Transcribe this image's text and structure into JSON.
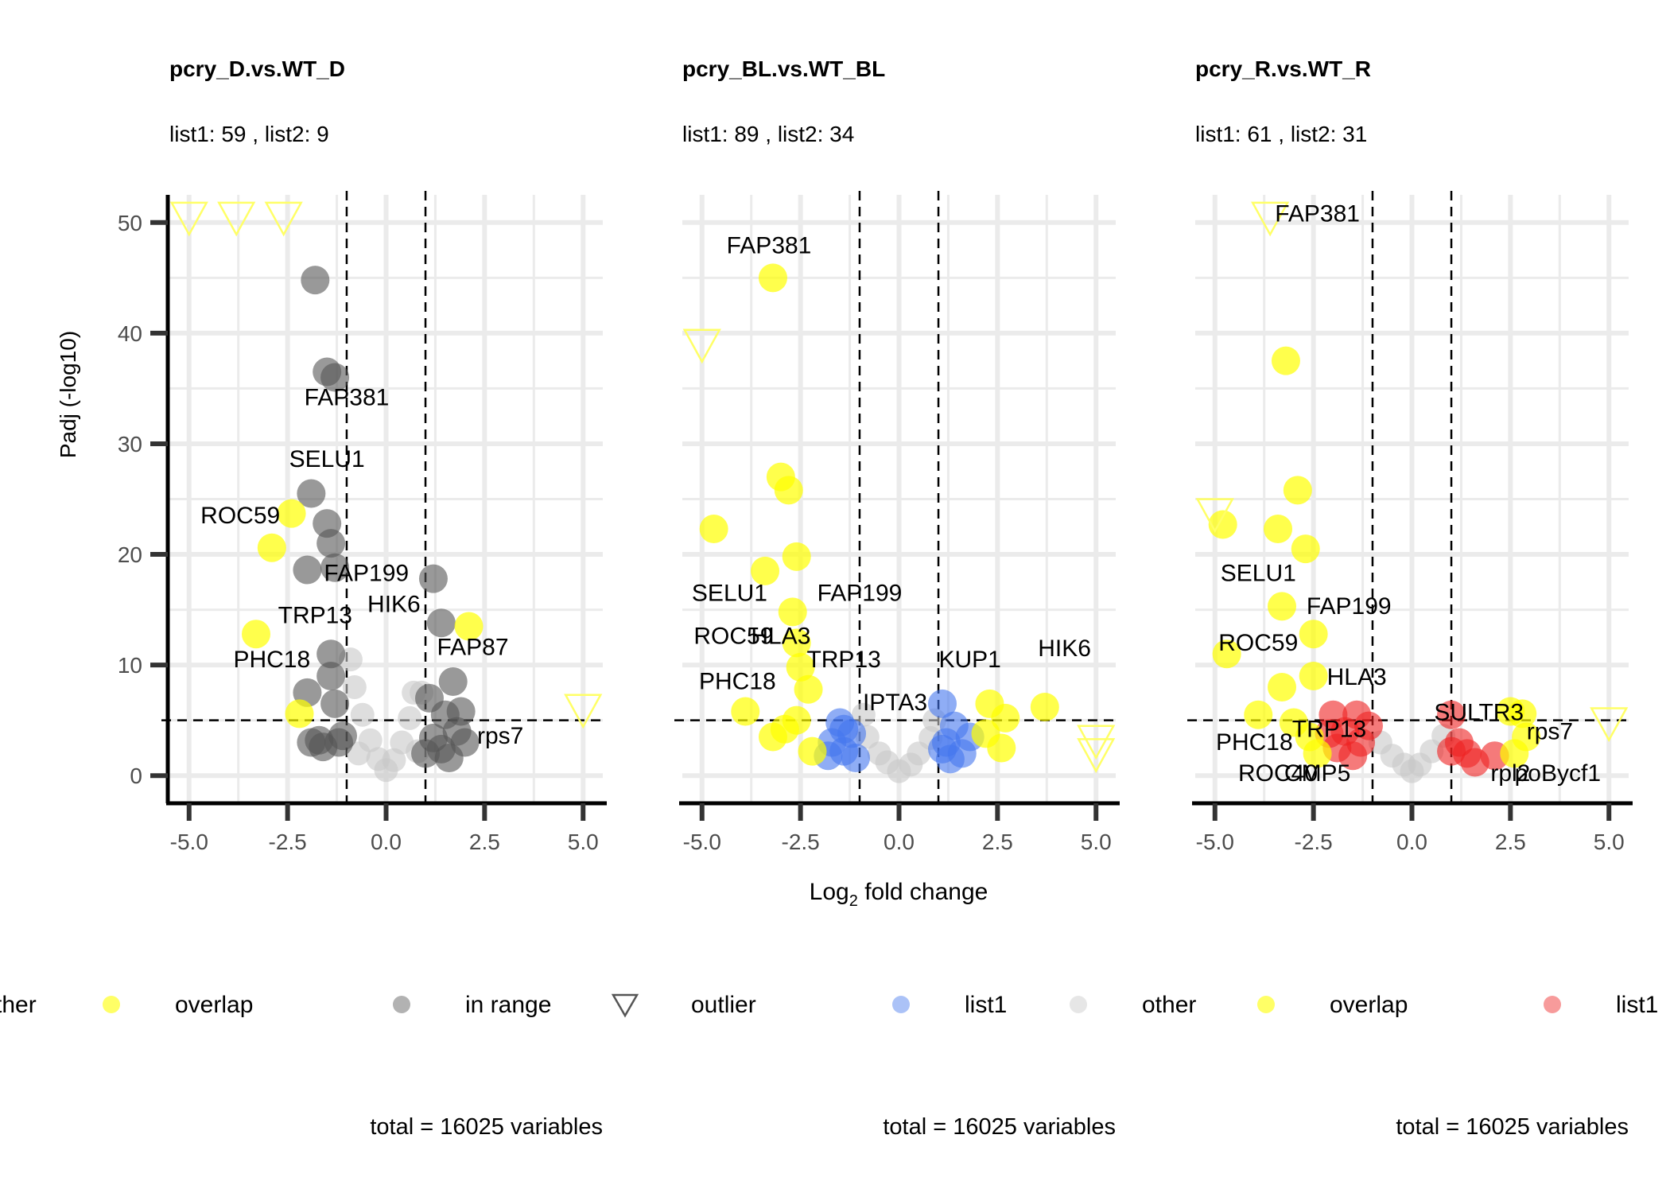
{
  "figure": {
    "xlabel_main": "Log",
    "xlabel_sub": "2",
    "xlabel_rest": " fold change",
    "ylabel": "Padj (-log10)"
  },
  "colors": {
    "overlap": "#ffff00",
    "in_range": "#555555",
    "outlier_stroke": "#ffff66",
    "list1_blue": "#4477ee",
    "other": "#c8c8c8",
    "list1_red": "#ee2222",
    "grid": "#ebebeb",
    "text": "#000000",
    "tick_text": "#4d4d4d"
  },
  "legend": [
    {
      "key": "other",
      "label": "ther",
      "shape": "none"
    },
    {
      "key": "overlap",
      "label": "overlap",
      "shape": "circle"
    },
    {
      "key": "in_range",
      "label": "in range",
      "shape": "circle"
    },
    {
      "key": "outlier",
      "label": "outlier",
      "shape": "triangle"
    },
    {
      "key": "list1_blue",
      "label": "list1",
      "shape": "circle"
    },
    {
      "key": "other",
      "label": "other",
      "shape": "circle"
    },
    {
      "key": "overlap",
      "label": "overlap",
      "shape": "circle"
    },
    {
      "key": "list1_red",
      "label": "list1",
      "shape": "circle"
    }
  ],
  "chart_data": [
    {
      "type": "scatter",
      "title": "pcry_D.vs.WT_D",
      "subtitle": "list1: 59 , list2:  9",
      "caption": "total = 16025 variables",
      "xlim": [
        -5.5,
        5.5
      ],
      "ylim": [
        -2.5,
        52.5
      ],
      "xticks": [
        "-5.0",
        "-2.5",
        "0.0",
        "2.5",
        "5.0"
      ],
      "xtick_values": [
        -5,
        -2.5,
        0,
        2.5,
        5
      ],
      "yticks": [
        "0",
        "10",
        "20",
        "30",
        "40",
        "50"
      ],
      "ytick_values": [
        0,
        10,
        20,
        30,
        40,
        50
      ],
      "show_yaxis": true,
      "vlines": [
        -1,
        1
      ],
      "hline": 5,
      "grid": true,
      "points": [
        {
          "x": -1.8,
          "y": 44.8,
          "c": "in_range"
        },
        {
          "x": -1.5,
          "y": 36.5,
          "c": "in_range"
        },
        {
          "x": -1.3,
          "y": 36.0,
          "c": "in_range"
        },
        {
          "x": -1.9,
          "y": 25.5,
          "c": "in_range"
        },
        {
          "x": -1.5,
          "y": 22.8,
          "c": "in_range"
        },
        {
          "x": -1.4,
          "y": 21.0,
          "c": "in_range"
        },
        {
          "x": -1.3,
          "y": 18.8,
          "c": "in_range"
        },
        {
          "x": -2.0,
          "y": 18.6,
          "c": "in_range"
        },
        {
          "x": -1.4,
          "y": 11.0,
          "c": "in_range"
        },
        {
          "x": -1.4,
          "y": 9.0,
          "c": "in_range"
        },
        {
          "x": -2.0,
          "y": 7.5,
          "c": "in_range"
        },
        {
          "x": -1.3,
          "y": 6.5,
          "c": "in_range"
        },
        {
          "x": -1.7,
          "y": 3.2,
          "c": "in_range"
        },
        {
          "x": -1.2,
          "y": 3.0,
          "c": "in_range"
        },
        {
          "x": -1.6,
          "y": 2.6,
          "c": "in_range"
        },
        {
          "x": -1.1,
          "y": 3.6,
          "c": "in_range"
        },
        {
          "x": -1.9,
          "y": 3.0,
          "c": "in_range"
        },
        {
          "x": 1.2,
          "y": 17.8,
          "c": "in_range"
        },
        {
          "x": 1.4,
          "y": 13.8,
          "c": "in_range"
        },
        {
          "x": 1.7,
          "y": 8.5,
          "c": "in_range"
        },
        {
          "x": 1.1,
          "y": 7.0,
          "c": "in_range"
        },
        {
          "x": 1.5,
          "y": 5.5,
          "c": "in_range"
        },
        {
          "x": 1.9,
          "y": 5.8,
          "c": "in_range"
        },
        {
          "x": 1.8,
          "y": 4.0,
          "c": "in_range"
        },
        {
          "x": 2.0,
          "y": 3.0,
          "c": "in_range"
        },
        {
          "x": 1.2,
          "y": 3.4,
          "c": "in_range"
        },
        {
          "x": 1.4,
          "y": 2.4,
          "c": "in_range"
        },
        {
          "x": 1.0,
          "y": 2.0,
          "c": "in_range"
        },
        {
          "x": 1.6,
          "y": 1.6,
          "c": "in_range"
        },
        {
          "x": -0.9,
          "y": 10.5,
          "c": "other"
        },
        {
          "x": -0.8,
          "y": 8.0,
          "c": "other"
        },
        {
          "x": -0.6,
          "y": 5.5,
          "c": "other"
        },
        {
          "x": -0.4,
          "y": 3.2,
          "c": "other"
        },
        {
          "x": -0.2,
          "y": 1.5,
          "c": "other"
        },
        {
          "x": 0.0,
          "y": 0.5,
          "c": "other"
        },
        {
          "x": 0.2,
          "y": 1.4,
          "c": "other"
        },
        {
          "x": 0.4,
          "y": 3.0,
          "c": "other"
        },
        {
          "x": 0.6,
          "y": 5.2,
          "c": "other"
        },
        {
          "x": 0.7,
          "y": 7.5,
          "c": "other"
        },
        {
          "x": 0.9,
          "y": 7.5,
          "c": "other"
        },
        {
          "x": -0.7,
          "y": 2.0,
          "c": "other"
        },
        {
          "x": 0.8,
          "y": 2.2,
          "c": "other"
        },
        {
          "x": -2.4,
          "y": 23.7,
          "c": "overlap"
        },
        {
          "x": -2.9,
          "y": 20.6,
          "c": "overlap"
        },
        {
          "x": -3.3,
          "y": 12.8,
          "c": "overlap"
        },
        {
          "x": -2.2,
          "y": 5.6,
          "c": "overlap"
        },
        {
          "x": 2.1,
          "y": 13.5,
          "c": "overlap"
        }
      ],
      "outliers": [
        {
          "x": -5.0,
          "y": 50.5
        },
        {
          "x": -3.8,
          "y": 50.5
        },
        {
          "x": -2.6,
          "y": 50.5
        },
        {
          "x": 5.0,
          "y": 6.0
        }
      ],
      "labels": [
        {
          "text": "FAP381",
          "x": -1.0,
          "y": 33.5
        },
        {
          "text": "SELU1",
          "x": -1.5,
          "y": 27.9
        },
        {
          "text": "ROC59",
          "x": -3.7,
          "y": 22.8
        },
        {
          "text": "FAP199",
          "x": -0.5,
          "y": 17.6
        },
        {
          "text": "HIK6",
          "x": 0.2,
          "y": 14.8
        },
        {
          "text": "TRP13",
          "x": -1.8,
          "y": 13.8
        },
        {
          "text": "PHC18",
          "x": -2.9,
          "y": 9.8
        },
        {
          "text": "FAP87",
          "x": 2.2,
          "y": 10.9
        },
        {
          "text": "rps7",
          "x": 2.9,
          "y": 2.9
        }
      ]
    },
    {
      "type": "scatter",
      "title": "pcry_BL.vs.WT_BL",
      "subtitle": "list1: 89 , list2:  34",
      "caption": "total = 16025 variables",
      "xlim": [
        -5.5,
        5.5
      ],
      "ylim": [
        -2.5,
        52.5
      ],
      "xticks": [
        "-5.0",
        "-2.5",
        "0.0",
        "2.5",
        "5.0"
      ],
      "xtick_values": [
        -5,
        -2.5,
        0,
        2.5,
        5
      ],
      "yticks": [],
      "ytick_values": [
        0,
        10,
        20,
        30,
        40,
        50
      ],
      "show_yaxis": false,
      "vlines": [
        -1,
        1
      ],
      "hline": 5,
      "grid": true,
      "points": [
        {
          "x": -3.2,
          "y": 45.0,
          "c": "overlap"
        },
        {
          "x": -3.0,
          "y": 27.0,
          "c": "overlap"
        },
        {
          "x": -2.8,
          "y": 25.8,
          "c": "overlap"
        },
        {
          "x": -4.7,
          "y": 22.3,
          "c": "overlap"
        },
        {
          "x": -2.6,
          "y": 19.8,
          "c": "overlap"
        },
        {
          "x": -3.4,
          "y": 18.5,
          "c": "overlap"
        },
        {
          "x": -2.7,
          "y": 14.8,
          "c": "overlap"
        },
        {
          "x": -2.6,
          "y": 12.0,
          "c": "overlap"
        },
        {
          "x": -2.5,
          "y": 9.8,
          "c": "overlap"
        },
        {
          "x": -2.3,
          "y": 7.8,
          "c": "overlap"
        },
        {
          "x": -3.9,
          "y": 5.8,
          "c": "overlap"
        },
        {
          "x": -3.2,
          "y": 3.5,
          "c": "overlap"
        },
        {
          "x": -2.9,
          "y": 4.2,
          "c": "overlap"
        },
        {
          "x": -2.2,
          "y": 2.2,
          "c": "overlap"
        },
        {
          "x": -2.6,
          "y": 5.0,
          "c": "overlap"
        },
        {
          "x": 2.3,
          "y": 6.5,
          "c": "overlap"
        },
        {
          "x": 2.7,
          "y": 5.2,
          "c": "overlap"
        },
        {
          "x": 3.7,
          "y": 6.2,
          "c": "overlap"
        },
        {
          "x": 2.6,
          "y": 2.5,
          "c": "overlap"
        },
        {
          "x": 2.2,
          "y": 3.8,
          "c": "overlap"
        },
        {
          "x": -1.5,
          "y": 4.8,
          "c": "list1_blue"
        },
        {
          "x": -1.7,
          "y": 3.0,
          "c": "list1_blue"
        },
        {
          "x": -1.4,
          "y": 2.2,
          "c": "list1_blue"
        },
        {
          "x": -1.2,
          "y": 3.8,
          "c": "list1_blue"
        },
        {
          "x": -1.8,
          "y": 1.8,
          "c": "list1_blue"
        },
        {
          "x": -1.1,
          "y": 1.6,
          "c": "list1_blue"
        },
        {
          "x": -1.4,
          "y": 4.2,
          "c": "list1_blue"
        },
        {
          "x": 1.1,
          "y": 6.5,
          "c": "list1_blue"
        },
        {
          "x": 1.4,
          "y": 4.5,
          "c": "list1_blue"
        },
        {
          "x": 1.2,
          "y": 3.0,
          "c": "list1_blue"
        },
        {
          "x": 1.6,
          "y": 2.0,
          "c": "list1_blue"
        },
        {
          "x": 1.3,
          "y": 1.5,
          "c": "list1_blue"
        },
        {
          "x": 1.8,
          "y": 3.5,
          "c": "list1_blue"
        },
        {
          "x": 1.1,
          "y": 2.4,
          "c": "list1_blue"
        },
        {
          "x": -0.8,
          "y": 3.5,
          "c": "other"
        },
        {
          "x": -0.5,
          "y": 2.0,
          "c": "other"
        },
        {
          "x": -0.3,
          "y": 1.2,
          "c": "other"
        },
        {
          "x": 0.0,
          "y": 0.4,
          "c": "other"
        },
        {
          "x": 0.3,
          "y": 1.0,
          "c": "other"
        },
        {
          "x": 0.5,
          "y": 2.0,
          "c": "other"
        },
        {
          "x": 0.8,
          "y": 3.4,
          "c": "other"
        },
        {
          "x": -0.9,
          "y": 5.5,
          "c": "other"
        },
        {
          "x": 0.9,
          "y": 5.0,
          "c": "other"
        }
      ],
      "outliers": [
        {
          "x": -5.0,
          "y": 39.0
        },
        {
          "x": 5.0,
          "y": 3.2
        },
        {
          "x": 5.0,
          "y": 2.0
        }
      ],
      "labels": [
        {
          "text": "FAP381",
          "x": -3.3,
          "y": 47.2
        },
        {
          "text": "SELU1",
          "x": -4.3,
          "y": 15.8
        },
        {
          "text": "FAP199",
          "x": -1.0,
          "y": 15.8
        },
        {
          "text": "ROC59",
          "x": -4.2,
          "y": 11.9
        },
        {
          "text": "HLA3",
          "x": -3.0,
          "y": 11.9
        },
        {
          "text": "TRP13",
          "x": -1.4,
          "y": 9.8
        },
        {
          "text": "KUP1",
          "x": 1.8,
          "y": 9.8
        },
        {
          "text": "HIK6",
          "x": 4.2,
          "y": 10.8
        },
        {
          "text": "PHC18",
          "x": -4.1,
          "y": 7.8
        },
        {
          "text": "IPTA3",
          "x": -0.1,
          "y": 5.9
        }
      ]
    },
    {
      "type": "scatter",
      "title": "pcry_R.vs.WT_R",
      "subtitle": "list1: 61 , list2:  31",
      "caption": "total = 16025 variables",
      "xlim": [
        -5.5,
        5.5
      ],
      "ylim": [
        -2.5,
        52.5
      ],
      "xticks": [
        "-5.0",
        "-2.5",
        "0.0",
        "2.5",
        "5.0"
      ],
      "xtick_values": [
        -5,
        -2.5,
        0,
        2.5,
        5
      ],
      "yticks": [],
      "ytick_values": [
        0,
        10,
        20,
        30,
        40,
        50
      ],
      "show_yaxis": false,
      "vlines": [
        -1,
        1
      ],
      "hline": 5,
      "grid": true,
      "points": [
        {
          "x": -3.2,
          "y": 37.5,
          "c": "overlap"
        },
        {
          "x": -2.9,
          "y": 25.8,
          "c": "overlap"
        },
        {
          "x": -4.8,
          "y": 22.7,
          "c": "overlap"
        },
        {
          "x": -3.4,
          "y": 22.3,
          "c": "overlap"
        },
        {
          "x": -2.7,
          "y": 20.5,
          "c": "overlap"
        },
        {
          "x": -3.3,
          "y": 15.3,
          "c": "overlap"
        },
        {
          "x": -2.5,
          "y": 12.8,
          "c": "overlap"
        },
        {
          "x": -4.7,
          "y": 11.0,
          "c": "overlap"
        },
        {
          "x": -2.5,
          "y": 9.0,
          "c": "overlap"
        },
        {
          "x": -3.3,
          "y": 8.0,
          "c": "overlap"
        },
        {
          "x": -3.9,
          "y": 5.5,
          "c": "overlap"
        },
        {
          "x": -3.0,
          "y": 4.8,
          "c": "overlap"
        },
        {
          "x": -2.6,
          "y": 3.5,
          "c": "overlap"
        },
        {
          "x": -2.4,
          "y": 2.0,
          "c": "overlap"
        },
        {
          "x": 2.5,
          "y": 5.8,
          "c": "overlap"
        },
        {
          "x": 2.8,
          "y": 5.6,
          "c": "overlap"
        },
        {
          "x": 2.9,
          "y": 3.5,
          "c": "overlap"
        },
        {
          "x": 2.6,
          "y": 2.0,
          "c": "overlap"
        },
        {
          "x": -2.0,
          "y": 5.5,
          "c": "list1_red"
        },
        {
          "x": -1.7,
          "y": 4.0,
          "c": "list1_red"
        },
        {
          "x": -1.4,
          "y": 5.5,
          "c": "list1_red"
        },
        {
          "x": -1.3,
          "y": 3.0,
          "c": "list1_red"
        },
        {
          "x": -1.9,
          "y": 2.5,
          "c": "list1_red"
        },
        {
          "x": -1.5,
          "y": 1.8,
          "c": "list1_red"
        },
        {
          "x": -1.1,
          "y": 4.5,
          "c": "list1_red"
        },
        {
          "x": -2.1,
          "y": 3.8,
          "c": "list1_red"
        },
        {
          "x": 1.0,
          "y": 5.5,
          "c": "list1_red"
        },
        {
          "x": 1.2,
          "y": 3.0,
          "c": "list1_red"
        },
        {
          "x": 1.4,
          "y": 2.0,
          "c": "list1_red"
        },
        {
          "x": 1.6,
          "y": 1.2,
          "c": "list1_red"
        },
        {
          "x": 2.1,
          "y": 1.8,
          "c": "list1_red"
        },
        {
          "x": 1.0,
          "y": 2.2,
          "c": "list1_red"
        },
        {
          "x": -0.8,
          "y": 3.0,
          "c": "other"
        },
        {
          "x": -0.5,
          "y": 1.8,
          "c": "other"
        },
        {
          "x": -0.2,
          "y": 1.0,
          "c": "other"
        },
        {
          "x": 0.0,
          "y": 0.4,
          "c": "other"
        },
        {
          "x": 0.2,
          "y": 1.0,
          "c": "other"
        },
        {
          "x": 0.5,
          "y": 2.2,
          "c": "other"
        },
        {
          "x": 0.8,
          "y": 3.6,
          "c": "other"
        }
      ],
      "outliers": [
        {
          "x": -3.6,
          "y": 50.5
        },
        {
          "x": -5.0,
          "y": 23.7
        },
        {
          "x": 5.0,
          "y": 4.8
        }
      ],
      "labels": [
        {
          "text": "FAP381",
          "x": -2.4,
          "y": 50.1
        },
        {
          "text": "SELU1",
          "x": -3.9,
          "y": 17.6
        },
        {
          "text": "FAP199",
          "x": -1.6,
          "y": 14.6
        },
        {
          "text": "ROC59",
          "x": -3.9,
          "y": 11.3
        },
        {
          "text": "HLA3",
          "x": -1.4,
          "y": 8.2
        },
        {
          "text": "SULTR3",
          "x": 1.7,
          "y": 5.0
        },
        {
          "text": "TRP13",
          "x": -2.1,
          "y": 3.5
        },
        {
          "text": "rps7",
          "x": 3.5,
          "y": 3.3
        },
        {
          "text": "PHC18",
          "x": -4.0,
          "y": 2.3
        },
        {
          "text": "ROC40",
          "x": -3.4,
          "y": -0.5
        },
        {
          "text": "CMP5",
          "x": -2.4,
          "y": -0.5
        },
        {
          "text": "rpl2",
          "x": 2.5,
          "y": -0.5
        },
        {
          "text": "poBycf1",
          "x": 3.7,
          "y": -0.5
        }
      ]
    }
  ]
}
